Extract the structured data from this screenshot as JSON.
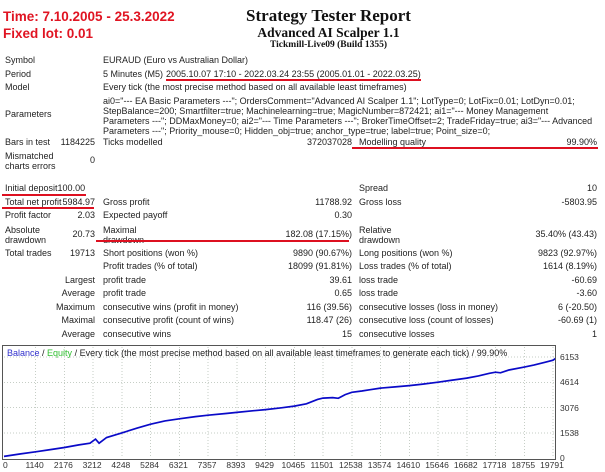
{
  "header": {
    "time_range": "Time: 7.10.2005 - 25.3.2022",
    "fixed_lot": "Fixed lot: 0.01",
    "title": "Strategy Tester Report",
    "subtitle": "Advanced AI Scalper 1.1",
    "server": "Tickmill-Live09 (Build 1355)"
  },
  "info": {
    "symbol_label": "Symbol",
    "symbol_value": "EURAUD (Euro vs Australian Dollar)",
    "period_label": "Period",
    "period_prefix": "5 Minutes (M5)",
    "period_underlined": "2005.10.07 17:10 - 2022.03.24 23:55 (2005.01.01 - 2022.03.25)",
    "model_label": "Model",
    "model_value": "Every tick (the most precise method based on all available least timeframes)",
    "parameters_label": "Parameters",
    "parameters_value": "ai0=\"--- EA Basic Parameters ---\"; OrdersComment=\"Advanced AI Scalper 1.1\"; LotType=0; LotFix=0.01; LotDyn=0.01; StepBalance=200; Smartfilter=true; Machinelearning=true; MagicNumber=872421; ai1=\"--- Money Management Parameters ---\"; DDMaxMoney=0; ai2=\"--- Time Parameters ---\"; BrokerTimeOffset=2; TradeFriday=true; ai3=\"--- Advanced Parameters ---\"; Priority_mouse=0; Hidden_obj=true; anchor_type=true; label=true; Point_size=0;"
  },
  "stats": {
    "bars_label": "Bars in test",
    "bars_value": "1184225",
    "ticks_label": "Ticks modelled",
    "ticks_value": "372037028",
    "quality_label": "Modelling quality",
    "quality_value": "99.90%",
    "mismatch_label": "Mismatched charts errors",
    "mismatch_value": "0",
    "deposit_label": "Initial deposit",
    "deposit_value": "100.00",
    "spread_label": "Spread",
    "spread_value": "10",
    "net_label": "Total net profit",
    "net_value": "5984.97",
    "gross_profit_label": "Gross profit",
    "gross_profit_value": "11788.92",
    "gross_loss_label": "Gross loss",
    "gross_loss_value": "-5803.95",
    "pf_label": "Profit factor",
    "pf_value": "2.03",
    "payoff_label": "Expected payoff",
    "payoff_value": "0.30",
    "abs_dd_label": "Absolute drawdown",
    "abs_dd_value": "20.73",
    "max_dd_label": "Maximal drawdown",
    "max_dd_value": "182.08 (17.15%)",
    "rel_dd_label": "Relative drawdown",
    "rel_dd_value": "35.40% (43.43)",
    "trades_label": "Total trades",
    "trades_value": "19713",
    "short_label": "Short positions (won %)",
    "short_value": "9890 (90.67%)",
    "long_label": "Long positions (won %)",
    "long_value": "9823 (92.97%)",
    "profit_trades_label": "Profit trades (% of total)",
    "profit_trades_value": "18099 (91.81%)",
    "loss_trades_label": "Loss trades (% of total)",
    "loss_trades_value": "1614 (8.19%)",
    "largest_label": "Largest",
    "largest_profit_label": "profit trade",
    "largest_profit_value": "39.61",
    "largest_loss_label": "loss trade",
    "largest_loss_value": "-60.69",
    "average_label": "Average",
    "avg_profit_label": "profit trade",
    "avg_profit_value": "0.65",
    "avg_loss_label": "loss trade",
    "avg_loss_value": "-3.60",
    "maximum_label": "Maximum",
    "max_wins_label": "consecutive wins (profit in money)",
    "max_wins_value": "116 (39.56)",
    "max_losses_label": "consecutive losses (loss in money)",
    "max_losses_value": "6 (-20.50)",
    "maximal_label": "Maximal",
    "max_profit_label": "consecutive profit (count of wins)",
    "max_profit_value": "118.47 (26)",
    "max_loss_label": "consecutive loss (count of losses)",
    "max_loss_value": "-60.69 (1)",
    "average2_label": "Average",
    "avg_wins_label": "consecutive wins",
    "avg_wins_value": "15",
    "avg_losses_label": "consecutive losses",
    "avg_losses_value": "1"
  },
  "chart_data": {
    "type": "line",
    "legend": {
      "balance": "Balance",
      "sep1": " / ",
      "equity": "Equity",
      "rest": " / Every tick (the most precise method based on all available least timeframes to generate each tick) / 99.90%"
    },
    "colors": {
      "balance_label": "#3030cc",
      "equity_label": "#2fbf2f",
      "line": "#0a0ac8",
      "grid": "#c6cec6"
    },
    "x_ticks": [
      0,
      1140,
      2176,
      3212,
      4248,
      5284,
      6321,
      7357,
      8393,
      9429,
      10465,
      11501,
      12538,
      13574,
      14610,
      15646,
      16682,
      17718,
      18755,
      19791
    ],
    "y_ticks": [
      0,
      1538,
      3076,
      4614,
      6153
    ],
    "xlabel": "trades",
    "ylabel": "balance",
    "series": [
      {
        "name": "Balance",
        "points": [
          [
            0,
            100
          ],
          [
            600,
            250
          ],
          [
            1140,
            380
          ],
          [
            1700,
            520
          ],
          [
            2176,
            640
          ],
          [
            2700,
            800
          ],
          [
            3100,
            900
          ],
          [
            3300,
            1150
          ],
          [
            3430,
            900
          ],
          [
            3700,
            1250
          ],
          [
            4248,
            1530
          ],
          [
            4800,
            1820
          ],
          [
            5284,
            2060
          ],
          [
            5800,
            2260
          ],
          [
            6321,
            2390
          ],
          [
            6900,
            2520
          ],
          [
            7357,
            2610
          ],
          [
            8000,
            2710
          ],
          [
            8393,
            2780
          ],
          [
            9000,
            2880
          ],
          [
            9429,
            2950
          ],
          [
            10000,
            3060
          ],
          [
            10465,
            3160
          ],
          [
            10900,
            3300
          ],
          [
            11300,
            3570
          ],
          [
            11501,
            3650
          ],
          [
            11850,
            3680
          ],
          [
            12050,
            3640
          ],
          [
            12300,
            3860
          ],
          [
            12538,
            4000
          ],
          [
            12900,
            4080
          ],
          [
            13200,
            4160
          ],
          [
            13574,
            4260
          ],
          [
            14100,
            4330
          ],
          [
            14610,
            4410
          ],
          [
            15100,
            4500
          ],
          [
            15646,
            4620
          ],
          [
            16100,
            4730
          ],
          [
            16682,
            4870
          ],
          [
            17100,
            5000
          ],
          [
            17500,
            5160
          ],
          [
            17718,
            5230
          ],
          [
            17900,
            5190
          ],
          [
            18200,
            5360
          ],
          [
            18755,
            5540
          ],
          [
            19100,
            5660
          ],
          [
            19500,
            5830
          ],
          [
            19791,
            5960
          ],
          [
            19900,
            6085
          ]
        ]
      }
    ]
  }
}
